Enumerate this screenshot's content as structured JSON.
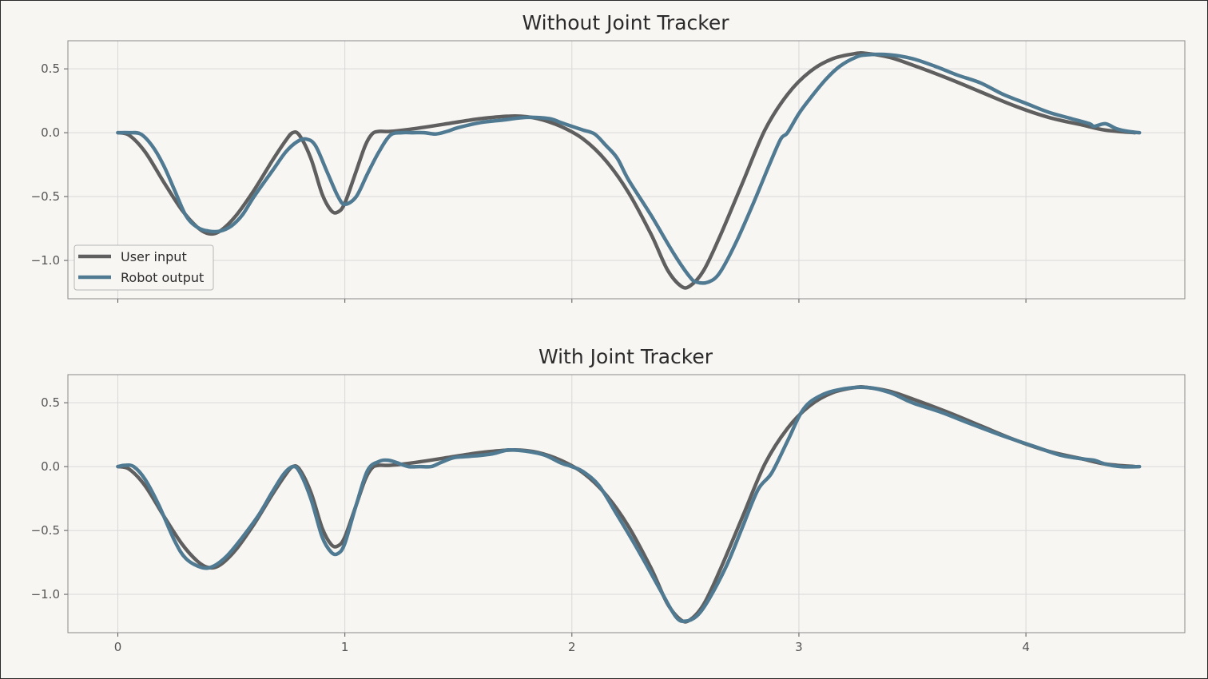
{
  "colors": {
    "user": "#5f5f5f",
    "robot": "#4f7a92",
    "grid": "#d8d8d8",
    "frame": "#8a8a8a",
    "background": "#f8f6f3"
  },
  "chart_data": [
    {
      "type": "line",
      "title": "Without Joint Tracker",
      "xlabel": "",
      "ylabel": "",
      "xlim": [
        -0.22,
        4.7
      ],
      "ylim": [
        -1.3,
        0.72
      ],
      "xticks": [
        0,
        1,
        2,
        3,
        4
      ],
      "xtick_labels_shown": false,
      "yticks": [
        0.5,
        0.0,
        -0.5,
        -1.0
      ],
      "ytick_labels": [
        "0.5",
        "0.0",
        "−0.5",
        "−1.0"
      ],
      "grid": true,
      "legend": {
        "placement": "lower-left",
        "entries": [
          "User input",
          "Robot output"
        ]
      },
      "series": [
        {
          "name": "User input",
          "points": [
            [
              0,
              0
            ],
            [
              0.05,
              -0.02
            ],
            [
              0.12,
              -0.15
            ],
            [
              0.2,
              -0.38
            ],
            [
              0.28,
              -0.6
            ],
            [
              0.35,
              -0.74
            ],
            [
              0.4,
              -0.79
            ],
            [
              0.45,
              -0.77
            ],
            [
              0.52,
              -0.65
            ],
            [
              0.6,
              -0.45
            ],
            [
              0.68,
              -0.22
            ],
            [
              0.74,
              -0.06
            ],
            [
              0.77,
              0.0
            ],
            [
              0.8,
              -0.02
            ],
            [
              0.85,
              -0.2
            ],
            [
              0.9,
              -0.48
            ],
            [
              0.94,
              -0.61
            ],
            [
              0.97,
              -0.62
            ],
            [
              1.0,
              -0.55
            ],
            [
              1.05,
              -0.3
            ],
            [
              1.09,
              -0.1
            ],
            [
              1.12,
              -0.01
            ],
            [
              1.15,
              0.01
            ],
            [
              1.2,
              0.01
            ],
            [
              1.3,
              0.03
            ],
            [
              1.45,
              0.07
            ],
            [
              1.6,
              0.11
            ],
            [
              1.75,
              0.13
            ],
            [
              1.85,
              0.11
            ],
            [
              1.95,
              0.05
            ],
            [
              2.05,
              -0.05
            ],
            [
              2.15,
              -0.22
            ],
            [
              2.25,
              -0.47
            ],
            [
              2.35,
              -0.8
            ],
            [
              2.42,
              -1.07
            ],
            [
              2.48,
              -1.2
            ],
            [
              2.52,
              -1.2
            ],
            [
              2.58,
              -1.08
            ],
            [
              2.65,
              -0.82
            ],
            [
              2.75,
              -0.4
            ],
            [
              2.85,
              0.02
            ],
            [
              2.95,
              0.3
            ],
            [
              3.05,
              0.48
            ],
            [
              3.15,
              0.58
            ],
            [
              3.25,
              0.62
            ],
            [
              3.3,
              0.62
            ],
            [
              3.4,
              0.59
            ],
            [
              3.5,
              0.53
            ],
            [
              3.65,
              0.43
            ],
            [
              3.8,
              0.32
            ],
            [
              3.95,
              0.21
            ],
            [
              4.1,
              0.12
            ],
            [
              4.25,
              0.06
            ],
            [
              4.35,
              0.02
            ],
            [
              4.48,
              0.0
            ]
          ]
        },
        {
          "name": "Robot output",
          "points": [
            [
              0,
              0
            ],
            [
              0.05,
              0.0
            ],
            [
              0.1,
              -0.01
            ],
            [
              0.15,
              -0.1
            ],
            [
              0.2,
              -0.25
            ],
            [
              0.25,
              -0.45
            ],
            [
              0.3,
              -0.65
            ],
            [
              0.35,
              -0.74
            ],
            [
              0.4,
              -0.77
            ],
            [
              0.45,
              -0.77
            ],
            [
              0.5,
              -0.73
            ],
            [
              0.55,
              -0.64
            ],
            [
              0.6,
              -0.5
            ],
            [
              0.68,
              -0.3
            ],
            [
              0.74,
              -0.15
            ],
            [
              0.79,
              -0.07
            ],
            [
              0.83,
              -0.05
            ],
            [
              0.87,
              -0.1
            ],
            [
              0.92,
              -0.3
            ],
            [
              0.97,
              -0.5
            ],
            [
              1.0,
              -0.56
            ],
            [
              1.05,
              -0.5
            ],
            [
              1.1,
              -0.32
            ],
            [
              1.15,
              -0.15
            ],
            [
              1.2,
              -0.02
            ],
            [
              1.25,
              0.0
            ],
            [
              1.3,
              0.0
            ],
            [
              1.35,
              0.0
            ],
            [
              1.4,
              -0.01
            ],
            [
              1.45,
              0.01
            ],
            [
              1.5,
              0.04
            ],
            [
              1.6,
              0.08
            ],
            [
              1.7,
              0.1
            ],
            [
              1.8,
              0.12
            ],
            [
              1.9,
              0.11
            ],
            [
              1.95,
              0.08
            ],
            [
              2.0,
              0.05
            ],
            [
              2.05,
              0.02
            ],
            [
              2.1,
              -0.01
            ],
            [
              2.15,
              -0.1
            ],
            [
              2.2,
              -0.2
            ],
            [
              2.25,
              -0.37
            ],
            [
              2.35,
              -0.65
            ],
            [
              2.45,
              -0.95
            ],
            [
              2.52,
              -1.13
            ],
            [
              2.55,
              -1.17
            ],
            [
              2.6,
              -1.17
            ],
            [
              2.65,
              -1.1
            ],
            [
              2.72,
              -0.87
            ],
            [
              2.8,
              -0.55
            ],
            [
              2.87,
              -0.25
            ],
            [
              2.92,
              -0.05
            ],
            [
              2.95,
              0.0
            ],
            [
              3.0,
              0.15
            ],
            [
              3.05,
              0.27
            ],
            [
              3.12,
              0.42
            ],
            [
              3.18,
              0.52
            ],
            [
              3.25,
              0.59
            ],
            [
              3.3,
              0.61
            ],
            [
              3.4,
              0.61
            ],
            [
              3.5,
              0.58
            ],
            [
              3.6,
              0.52
            ],
            [
              3.7,
              0.45
            ],
            [
              3.8,
              0.39
            ],
            [
              3.9,
              0.3
            ],
            [
              4.0,
              0.23
            ],
            [
              4.1,
              0.16
            ],
            [
              4.2,
              0.11
            ],
            [
              4.28,
              0.07
            ],
            [
              4.3,
              0.05
            ],
            [
              4.35,
              0.07
            ],
            [
              4.4,
              0.03
            ],
            [
              4.45,
              0.01
            ],
            [
              4.5,
              0.0
            ]
          ]
        }
      ]
    },
    {
      "type": "line",
      "title": "With Joint Tracker",
      "xlabel": "",
      "ylabel": "",
      "xlim": [
        -0.22,
        4.7
      ],
      "ylim": [
        -1.3,
        0.72
      ],
      "xticks": [
        0,
        1,
        2,
        3,
        4
      ],
      "xtick_labels": [
        "0",
        "1",
        "2",
        "3",
        "4"
      ],
      "yticks": [
        0.5,
        0.0,
        -0.5,
        -1.0
      ],
      "ytick_labels": [
        "0.5",
        "0.0",
        "−0.5",
        "−1.0"
      ],
      "grid": true,
      "series": [
        {
          "name": "User input",
          "points": [
            [
              0,
              0
            ],
            [
              0.05,
              -0.02
            ],
            [
              0.12,
              -0.15
            ],
            [
              0.2,
              -0.38
            ],
            [
              0.28,
              -0.6
            ],
            [
              0.35,
              -0.74
            ],
            [
              0.4,
              -0.79
            ],
            [
              0.45,
              -0.77
            ],
            [
              0.52,
              -0.65
            ],
            [
              0.6,
              -0.45
            ],
            [
              0.68,
              -0.22
            ],
            [
              0.74,
              -0.06
            ],
            [
              0.77,
              0.0
            ],
            [
              0.8,
              -0.02
            ],
            [
              0.85,
              -0.2
            ],
            [
              0.9,
              -0.48
            ],
            [
              0.94,
              -0.61
            ],
            [
              0.97,
              -0.62
            ],
            [
              1.0,
              -0.55
            ],
            [
              1.05,
              -0.3
            ],
            [
              1.09,
              -0.1
            ],
            [
              1.12,
              -0.01
            ],
            [
              1.15,
              0.01
            ],
            [
              1.2,
              0.01
            ],
            [
              1.3,
              0.03
            ],
            [
              1.45,
              0.07
            ],
            [
              1.6,
              0.11
            ],
            [
              1.75,
              0.13
            ],
            [
              1.85,
              0.11
            ],
            [
              1.95,
              0.05
            ],
            [
              2.05,
              -0.05
            ],
            [
              2.15,
              -0.22
            ],
            [
              2.25,
              -0.47
            ],
            [
              2.35,
              -0.8
            ],
            [
              2.42,
              -1.07
            ],
            [
              2.48,
              -1.2
            ],
            [
              2.52,
              -1.2
            ],
            [
              2.58,
              -1.08
            ],
            [
              2.65,
              -0.82
            ],
            [
              2.75,
              -0.4
            ],
            [
              2.85,
              0.02
            ],
            [
              2.95,
              0.3
            ],
            [
              3.05,
              0.48
            ],
            [
              3.15,
              0.58
            ],
            [
              3.25,
              0.62
            ],
            [
              3.3,
              0.62
            ],
            [
              3.4,
              0.59
            ],
            [
              3.5,
              0.53
            ],
            [
              3.65,
              0.43
            ],
            [
              3.8,
              0.32
            ],
            [
              3.95,
              0.21
            ],
            [
              4.1,
              0.12
            ],
            [
              4.25,
              0.06
            ],
            [
              4.35,
              0.02
            ],
            [
              4.48,
              0.0
            ]
          ]
        },
        {
          "name": "Robot output",
          "points": [
            [
              0,
              0
            ],
            [
              0.03,
              0.01
            ],
            [
              0.07,
              0.0
            ],
            [
              0.12,
              -0.1
            ],
            [
              0.18,
              -0.3
            ],
            [
              0.25,
              -0.58
            ],
            [
              0.3,
              -0.72
            ],
            [
              0.37,
              -0.79
            ],
            [
              0.42,
              -0.78
            ],
            [
              0.48,
              -0.7
            ],
            [
              0.55,
              -0.55
            ],
            [
              0.62,
              -0.38
            ],
            [
              0.68,
              -0.2
            ],
            [
              0.73,
              -0.06
            ],
            [
              0.77,
              0.0
            ],
            [
              0.8,
              -0.04
            ],
            [
              0.85,
              -0.25
            ],
            [
              0.9,
              -0.55
            ],
            [
              0.94,
              -0.67
            ],
            [
              0.97,
              -0.68
            ],
            [
              1.0,
              -0.6
            ],
            [
              1.05,
              -0.3
            ],
            [
              1.1,
              -0.03
            ],
            [
              1.15,
              0.04
            ],
            [
              1.19,
              0.05
            ],
            [
              1.23,
              0.03
            ],
            [
              1.28,
              0.0
            ],
            [
              1.33,
              0.0
            ],
            [
              1.38,
              0.0
            ],
            [
              1.42,
              0.03
            ],
            [
              1.48,
              0.07
            ],
            [
              1.55,
              0.08
            ],
            [
              1.65,
              0.1
            ],
            [
              1.72,
              0.13
            ],
            [
              1.8,
              0.12
            ],
            [
              1.88,
              0.09
            ],
            [
              1.95,
              0.03
            ],
            [
              2.0,
              0.0
            ],
            [
              2.05,
              -0.04
            ],
            [
              2.12,
              -0.15
            ],
            [
              2.2,
              -0.38
            ],
            [
              2.3,
              -0.68
            ],
            [
              2.4,
              -1.0
            ],
            [
              2.46,
              -1.18
            ],
            [
              2.5,
              -1.21
            ],
            [
              2.55,
              -1.17
            ],
            [
              2.6,
              -1.05
            ],
            [
              2.68,
              -0.78
            ],
            [
              2.75,
              -0.48
            ],
            [
              2.82,
              -0.18
            ],
            [
              2.88,
              -0.05
            ],
            [
              2.95,
              0.2
            ],
            [
              3.02,
              0.45
            ],
            [
              3.1,
              0.56
            ],
            [
              3.2,
              0.61
            ],
            [
              3.3,
              0.62
            ],
            [
              3.4,
              0.58
            ],
            [
              3.5,
              0.5
            ],
            [
              3.62,
              0.43
            ],
            [
              3.75,
              0.34
            ],
            [
              3.9,
              0.24
            ],
            [
              4.05,
              0.15
            ],
            [
              4.15,
              0.09
            ],
            [
              4.25,
              0.06
            ],
            [
              4.3,
              0.05
            ],
            [
              4.35,
              0.02
            ],
            [
              4.42,
              0.0
            ],
            [
              4.5,
              0.0
            ]
          ]
        }
      ]
    }
  ]
}
